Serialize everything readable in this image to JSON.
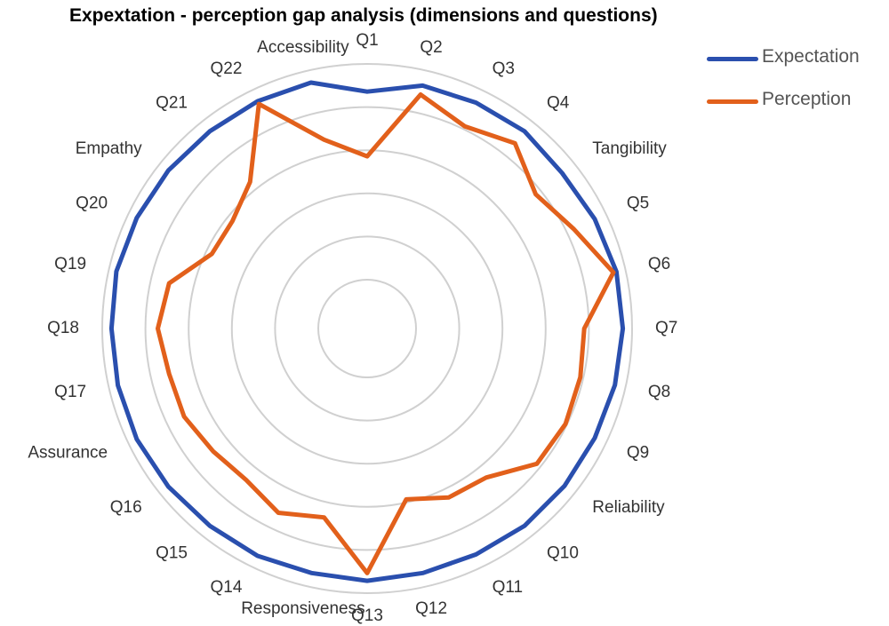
{
  "chart_data": {
    "type": "radar",
    "title": "Expextation - perception gap analysis (dimensions and questions)",
    "categories": [
      "Q1",
      "Q2",
      "Q3",
      "Q4",
      "Tangibility",
      "Q5",
      "Q6",
      "Q7",
      "Q8",
      "Q9",
      "Reliability",
      "Q10",
      "Q11",
      "Q12",
      "Q13",
      "Responsiveness",
      "Q14",
      "Q15",
      "Q16",
      "Assurance",
      "Q17",
      "Q18",
      "Q19",
      "Q20",
      "Empathy",
      "Q21",
      "Q22",
      "Accessibility"
    ],
    "rlim": [
      0,
      7
    ],
    "rings": 5,
    "grid": true,
    "legend_position": "top-right",
    "series": [
      {
        "name": "Expectation",
        "color": "#2a4fae",
        "values": [
          6.1,
          6.5,
          6.55,
          6.6,
          6.5,
          6.6,
          6.7,
          6.7,
          6.65,
          6.6,
          6.6,
          6.6,
          6.55,
          6.55,
          6.6,
          6.55,
          6.6,
          6.6,
          6.65,
          6.7,
          6.7,
          6.7,
          6.75,
          6.7,
          6.65,
          6.6,
          6.6,
          6.6
        ]
      },
      {
        "name": "Perception",
        "color": "#e2601b",
        "values": [
          4.0,
          6.2,
          5.7,
          6.1,
          5.4,
          5.85,
          6.6,
          5.45,
          5.5,
          5.55,
          5.45,
          4.6,
          4.5,
          4.1,
          6.35,
          4.7,
          5.05,
          4.7,
          4.8,
          5.0,
          5.0,
          5.2,
          5.0,
          4.0,
          4.0,
          4.5,
          6.5,
          4.7
        ]
      }
    ]
  }
}
